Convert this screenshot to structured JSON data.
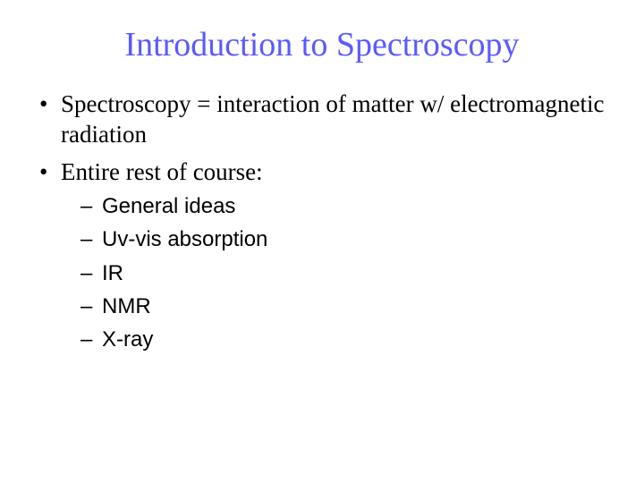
{
  "title": {
    "text": "Introduction to Spectroscopy",
    "color": "#5a5aff",
    "fontsize": 38
  },
  "bullets_level1_fontsize": 27,
  "bullets_level1_color": "#000000",
  "bullets_level2_fontsize": 24,
  "bullets_level2_color": "#000000",
  "bullets": [
    {
      "text": "Spectroscopy = interaction of matter w/ electromagnetic radiation"
    },
    {
      "text": "Entire rest of course:",
      "sub": [
        "General ideas",
        "Uv-vis absorption",
        "IR",
        "NMR",
        "X-ray"
      ]
    }
  ],
  "background_color": "#ffffff"
}
